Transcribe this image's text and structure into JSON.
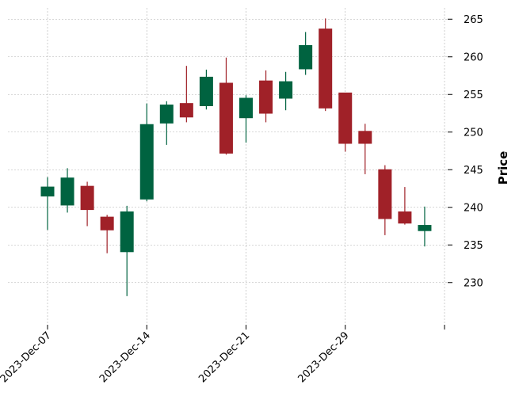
{
  "chart_data": {
    "type": "candlestick",
    "title": "",
    "xlabel": "",
    "ylabel": "Price",
    "ylim": [
      226.5,
      266.5
    ],
    "yticks": [
      230,
      235,
      240,
      245,
      250,
      255,
      260,
      265
    ],
    "xticks": [
      {
        "index": 0,
        "label": "2023-Dec-07"
      },
      {
        "index": 5,
        "label": "2023-Dec-14"
      },
      {
        "index": 10,
        "label": "2023-Dec-21"
      },
      {
        "index": 15,
        "label": "2023-Dec-29"
      },
      {
        "index": 20,
        "label": ""
      }
    ],
    "grid": true,
    "colors": {
      "up": "#006340",
      "down": "#a02128"
    },
    "candles": [
      {
        "open": 241.5,
        "high": 244.0,
        "low": 237.0,
        "close": 242.7
      },
      {
        "open": 240.3,
        "high": 245.2,
        "low": 239.3,
        "close": 243.9
      },
      {
        "open": 242.8,
        "high": 243.4,
        "low": 237.5,
        "close": 239.7
      },
      {
        "open": 238.7,
        "high": 239.0,
        "low": 233.9,
        "close": 237.0
      },
      {
        "open": 234.1,
        "high": 240.2,
        "low": 228.2,
        "close": 239.4
      },
      {
        "open": 241.1,
        "high": 253.8,
        "low": 240.8,
        "close": 251.0
      },
      {
        "open": 251.2,
        "high": 254.1,
        "low": 248.3,
        "close": 253.6
      },
      {
        "open": 253.8,
        "high": 258.8,
        "low": 251.3,
        "close": 252.0
      },
      {
        "open": 253.5,
        "high": 258.3,
        "low": 253.0,
        "close": 257.3
      },
      {
        "open": 256.5,
        "high": 259.9,
        "low": 247.0,
        "close": 247.2
      },
      {
        "open": 251.9,
        "high": 254.9,
        "low": 248.6,
        "close": 254.5
      },
      {
        "open": 256.8,
        "high": 258.2,
        "low": 251.3,
        "close": 252.5
      },
      {
        "open": 254.5,
        "high": 258.0,
        "low": 252.9,
        "close": 256.7
      },
      {
        "open": 258.4,
        "high": 263.3,
        "low": 257.6,
        "close": 261.5
      },
      {
        "open": 263.7,
        "high": 265.1,
        "low": 252.8,
        "close": 253.2
      },
      {
        "open": 255.2,
        "high": 255.2,
        "low": 247.4,
        "close": 248.5
      },
      {
        "open": 250.1,
        "high": 251.1,
        "low": 244.4,
        "close": 248.5
      },
      {
        "open": 245.0,
        "high": 245.6,
        "low": 236.3,
        "close": 238.5
      },
      {
        "open": 239.4,
        "high": 242.7,
        "low": 237.7,
        "close": 237.9
      },
      {
        "open": 236.9,
        "high": 240.1,
        "low": 234.8,
        "close": 237.6
      }
    ]
  }
}
